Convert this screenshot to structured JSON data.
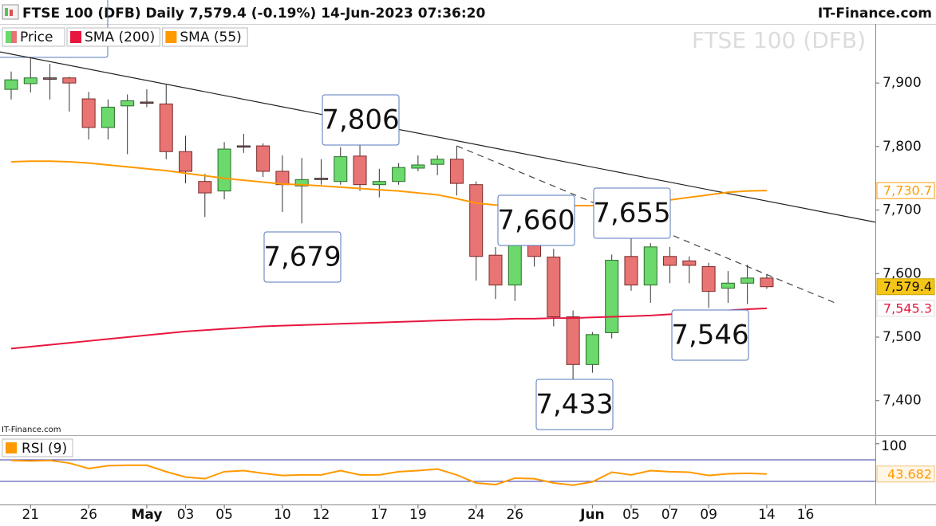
{
  "chart_data": [
    {
      "type": "candlestick",
      "title": "FTSE 100 (DFB) Daily 7,579.4 (-0.19%) 14-Jun-2023 07:36:20",
      "source": "IT-Finance.com",
      "watermark": "FTSE 100 (DFB)",
      "credit": "IT-Finance.com",
      "categories": [
        null,
        "21",
        null,
        null,
        "26",
        null,
        null,
        "May",
        null,
        "03",
        null,
        "05",
        null,
        null,
        "10",
        null,
        "12",
        null,
        null,
        "17",
        null,
        "19",
        null,
        null,
        "24",
        null,
        "26",
        null,
        null,
        null,
        "Jun",
        null,
        "05",
        null,
        "07",
        null,
        "09",
        null,
        null,
        "14",
        null,
        "16"
      ],
      "series": [
        {
          "name": "Price",
          "type": "candlestick",
          "color_up": "#6bd96b",
          "color_down": "#e87474",
          "open": [
            7890,
            7899,
            7908,
            7908,
            7875,
            7830,
            7864,
            7870,
            7867,
            7792,
            7745,
            7730,
            7801,
            7801,
            7761,
            7738,
            7750,
            7745,
            7785,
            7740,
            7745,
            7766,
            7772,
            7780,
            7740,
            7629,
            7582,
            7651,
            7626,
            7532,
            7457,
            7507,
            7627,
            7582,
            7627,
            7620,
            7611,
            7577,
            7585,
            7593,
            null,
            null
          ],
          "high": [
            7918,
            7940,
            7930,
            7910,
            7886,
            7874,
            7882,
            7890,
            7899,
            7817,
            7757,
            7807,
            7820,
            7805,
            7786,
            7782,
            7780,
            7799,
            7806,
            7765,
            7774,
            7786,
            7786,
            7801,
            7745,
            7642,
            7651,
            7660,
            7639,
            7542,
            7508,
            7630,
            7655,
            7648,
            7642,
            7627,
            7617,
            7604,
            7614,
            7598,
            null,
            null
          ],
          "low": [
            7874,
            7885,
            7874,
            7855,
            7811,
            7811,
            7788,
            7862,
            7780,
            7742,
            7689,
            7717,
            7790,
            7752,
            7697,
            7679,
            7740,
            7740,
            7730,
            7720,
            7740,
            7761,
            7755,
            7723,
            7589,
            7560,
            7557,
            7611,
            7517,
            7433,
            7444,
            7498,
            7573,
            7554,
            7585,
            7585,
            7546,
            7554,
            7552,
            7576,
            null,
            null
          ],
          "close": [
            7905,
            7908,
            7906,
            7900,
            7830,
            7862,
            7872,
            7869,
            7792,
            7761,
            7727,
            7796,
            7800,
            7761,
            7740,
            7748,
            7749,
            7784,
            7740,
            7745,
            7767,
            7771,
            7780,
            7742,
            7627,
            7582,
            7645,
            7627,
            7532,
            7457,
            7504,
            7621,
            7582,
            7642,
            7613,
            7613,
            7572,
            7585,
            7593,
            7579.4,
            null,
            null
          ],
          "value_labels": [
            null,
            null,
            null,
            null,
            null,
            null,
            null,
            null,
            null,
            null,
            null,
            null,
            null,
            null,
            null,
            null,
            null,
            null,
            null,
            null,
            null,
            null,
            null,
            null,
            null,
            null,
            null,
            null,
            null,
            null,
            null,
            null,
            null,
            null,
            null,
            null,
            null,
            null,
            null,
            "7,579.4",
            null,
            null
          ],
          "label_color": "#f5c518"
        },
        {
          "name": "SMA (200)",
          "type": "line",
          "color": "#e8173f",
          "values": [
            7482,
            7485,
            7488,
            7491,
            7494,
            7497,
            7500,
            7503,
            7506,
            7509,
            7511,
            7513,
            7515,
            7517,
            7518,
            7519,
            7520,
            7521,
            7522,
            7523,
            7524,
            7525,
            7526,
            7527,
            7528,
            7528,
            7529,
            7529,
            7530,
            7530,
            7531,
            7532,
            7533,
            7534,
            7536,
            7538,
            7540,
            7542,
            7544,
            7545.3,
            null,
            null
          ],
          "value_labels": [
            null,
            null,
            null,
            null,
            null,
            null,
            null,
            null,
            null,
            null,
            null,
            null,
            null,
            null,
            null,
            null,
            null,
            null,
            null,
            null,
            null,
            null,
            null,
            null,
            null,
            null,
            null,
            null,
            null,
            null,
            null,
            null,
            null,
            null,
            null,
            null,
            null,
            null,
            null,
            "7,545.3",
            null,
            null
          ]
        },
        {
          "name": "SMA (55)",
          "type": "line",
          "color": "#ff9900",
          "values": [
            7776,
            7777,
            7777,
            7776,
            7774,
            7771,
            7768,
            7765,
            7762,
            7758,
            7754,
            7750,
            7747,
            7744,
            7741,
            7740,
            7738,
            7736,
            7734,
            7732,
            7730,
            7727,
            7724,
            7718,
            7711,
            7708,
            7707,
            7707,
            7707,
            7707,
            7707,
            7709,
            7712,
            7714,
            7716,
            7720,
            7724,
            7728,
            7730,
            7730.7,
            null,
            null
          ],
          "value_labels": [
            null,
            null,
            null,
            null,
            null,
            null,
            null,
            null,
            null,
            null,
            null,
            null,
            null,
            null,
            null,
            null,
            null,
            null,
            null,
            null,
            null,
            null,
            null,
            null,
            null,
            null,
            null,
            null,
            null,
            null,
            null,
            null,
            null,
            null,
            null,
            null,
            null,
            null,
            null,
            "7,730.7",
            null,
            null
          ]
        }
      ],
      "trendlines": [
        {
          "style": "solid",
          "color": "#222222",
          "x": [
            -0.58,
            44.6
          ],
          "values": [
            7949,
            7681
          ]
        },
        {
          "style": "dashed",
          "color": "#444444",
          "x": [
            23,
            42.6
          ],
          "values": [
            7801,
            7553
          ]
        }
      ],
      "annotations": [
        "7,806",
        "7,679",
        "7,660",
        "7,655",
        "7,433",
        "7,546"
      ],
      "ylim": [
        7347,
        7993
      ],
      "yticks": [
        {
          "value": 7400,
          "label": "7,400"
        },
        {
          "value": 7500,
          "label": "7,500"
        },
        {
          "value": 7600,
          "label": "7,600"
        },
        {
          "value": 7700,
          "label": "7,700"
        },
        {
          "value": 7800,
          "label": "7,800"
        },
        {
          "value": 7900,
          "label": "7,900"
        }
      ],
      "grid": false
    },
    {
      "type": "line",
      "series": [
        {
          "name": "RSI (9)",
          "color": "#ff9900",
          "values": [
            69,
            68,
            69,
            64,
            54,
            59,
            60,
            60,
            48,
            38,
            35,
            48,
            50,
            45,
            41,
            42,
            42,
            50,
            42,
            42,
            48,
            50,
            53,
            42,
            27,
            24,
            36,
            35,
            27,
            23,
            29,
            47,
            42,
            50,
            48,
            47,
            41,
            44,
            45,
            43.682,
            null,
            null
          ],
          "value_labels": [
            null,
            null,
            null,
            null,
            null,
            null,
            null,
            null,
            null,
            null,
            null,
            null,
            null,
            null,
            null,
            null,
            null,
            null,
            null,
            null,
            null,
            null,
            null,
            null,
            null,
            null,
            null,
            null,
            null,
            null,
            null,
            null,
            null,
            null,
            null,
            null,
            null,
            null,
            null,
            "43.682",
            null,
            null
          ]
        }
      ],
      "levels": [
        70,
        30
      ],
      "level_color": "#3a3aa8",
      "ylim": [
        -11.5,
        113
      ],
      "yticks": [
        100
      ]
    }
  ]
}
